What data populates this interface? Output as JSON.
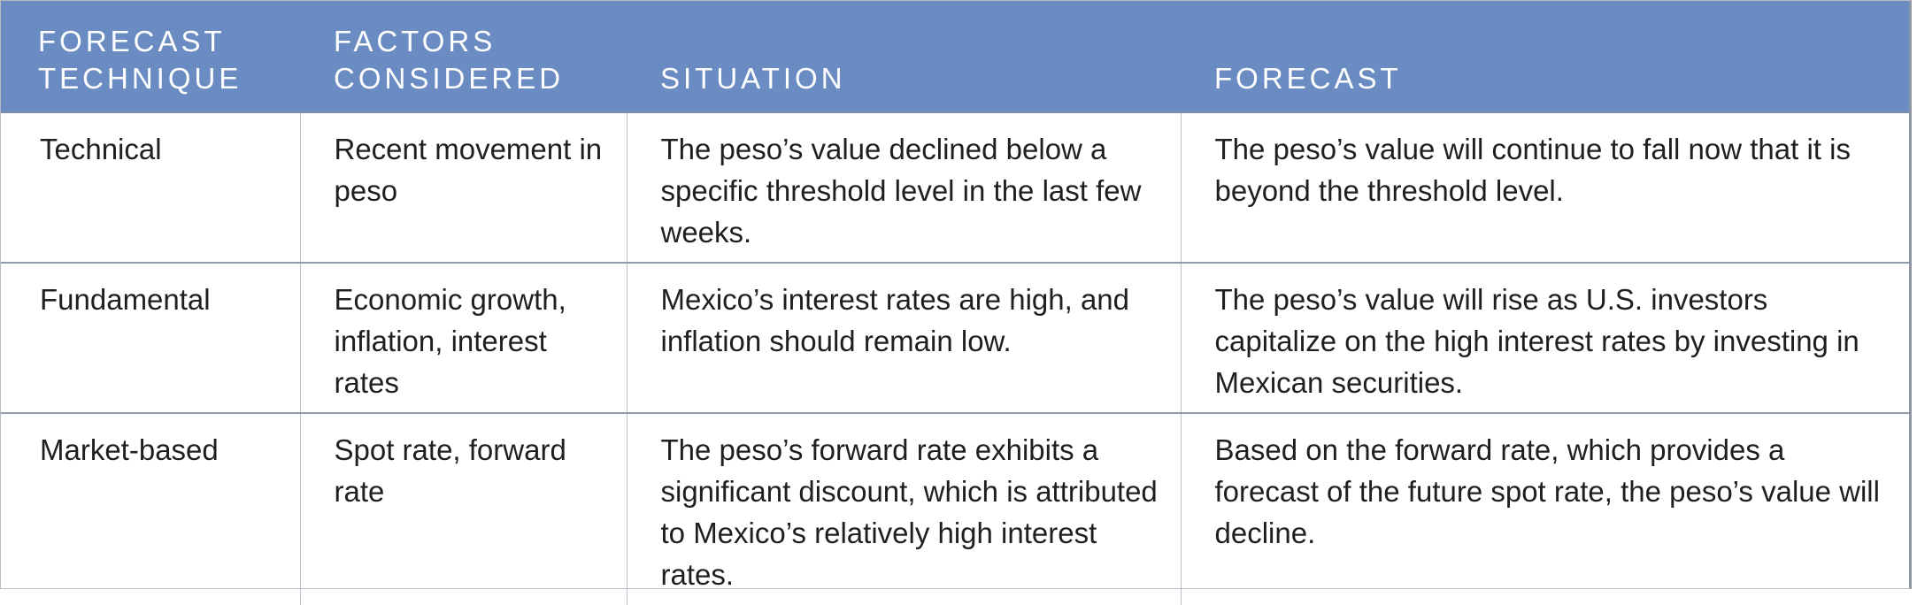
{
  "table": {
    "headers": [
      "FORECAST\nTECHNIQUE",
      "FACTORS\nCONSIDERED",
      "SITUATION",
      "FORECAST"
    ],
    "rows": [
      {
        "technique": "Technical",
        "factors": "Recent movement in peso",
        "situation": "The peso’s value declined below a specific threshold level in the last few weeks.",
        "forecast": "The peso’s value will continue to fall now that it is beyond the threshold level."
      },
      {
        "technique": "Fundamental",
        "factors": "Economic growth, inflation, interest rates",
        "situation": "Mexico’s interest rates are high, and inflation should remain low.",
        "forecast": "The peso’s value will rise as U.S. investors capitalize on the high interest rates by investing in Mexican securities."
      },
      {
        "technique": "Market-based",
        "factors": "Spot rate, forward rate",
        "situation": "The peso’s forward rate exhibits a significant discount, which is attributed to Mexico’s relatively high interest rates.",
        "forecast": "Based on the forward rate, which provides a forecast of the future spot rate, the peso’s value will decline."
      }
    ],
    "colors": {
      "header_background": "#6b8cc2",
      "header_text": "#ffffff",
      "body_text": "#1f1f1f",
      "grid_line": "#8f9aab"
    }
  }
}
